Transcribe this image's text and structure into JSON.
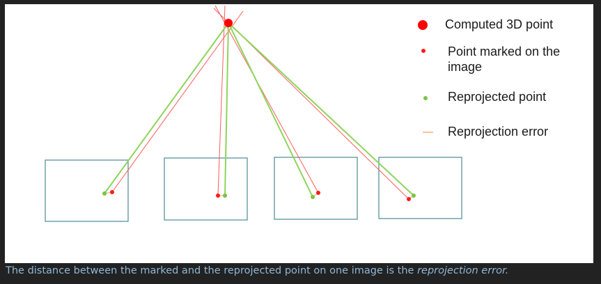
{
  "legend": {
    "computed_point": "Computed 3D point",
    "marked_point_line1": "Point marked on the",
    "marked_point_line2": "image",
    "reprojected_point": "Reprojected point",
    "reprojection_error": "Reprojection error"
  },
  "caption": {
    "text": "The distance between the marked and the reprojected point on one image is the ",
    "emphasis": "reprojection error."
  },
  "colors": {
    "computed_point": "#ff0000",
    "marked_point": "#ff1a1a",
    "marked_ray": "#ff5a5a",
    "reprojected_point": "#7cc242",
    "reprojected_ray": "#8ed45a",
    "reprojection_error": "#ffae70",
    "image_frame": "#4a8a96",
    "caption": "#8fb8d8"
  }
}
